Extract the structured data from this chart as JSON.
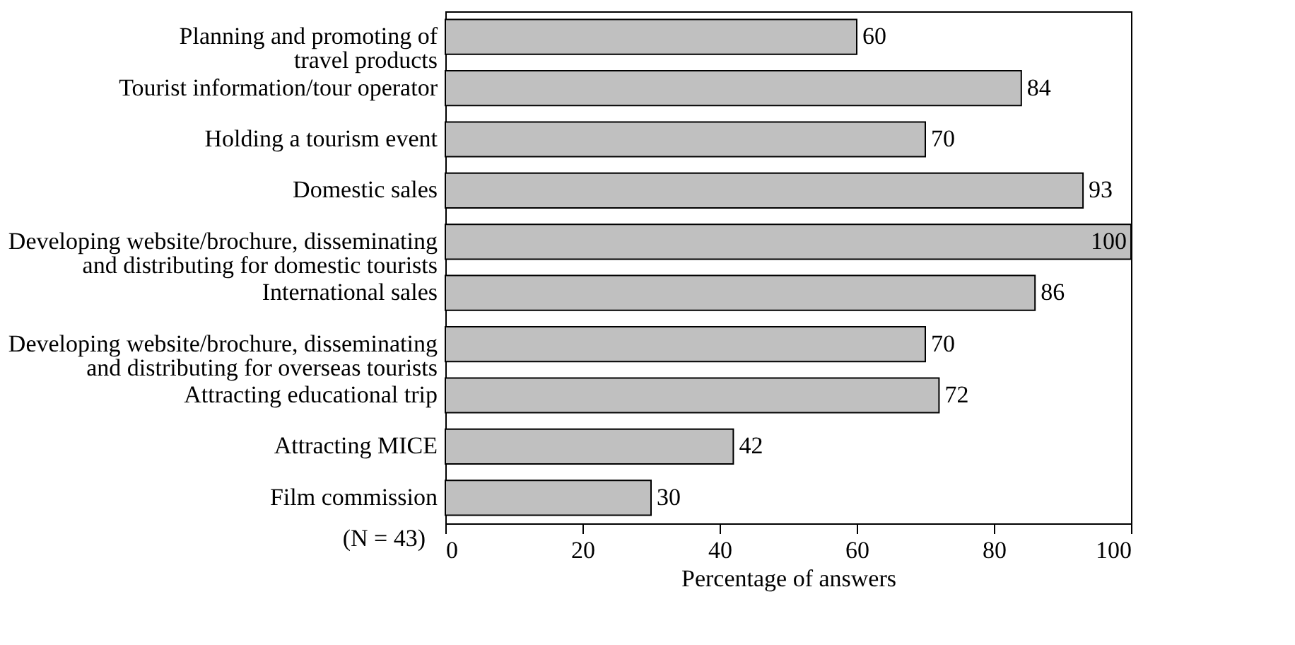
{
  "chart_data": {
    "type": "bar",
    "orientation": "horizontal",
    "categories": [
      "Planning and promoting of\ntravel products",
      "Tourist information/tour operator",
      "Holding a tourism event",
      "Domestic sales",
      "Developing website/brochure, disseminating\nand distributing for domestic tourists",
      "International sales",
      "Developing website/brochure, disseminating\nand distributing for overseas tourists",
      "Attracting educational trip",
      "Attracting MICE",
      "Film commission"
    ],
    "values": [
      60,
      84,
      70,
      93,
      100,
      86,
      70,
      72,
      42,
      30
    ],
    "color": "#c0c0c0",
    "xlim": [
      0,
      100
    ],
    "xticks": [
      0,
      20,
      40,
      60,
      80,
      100
    ],
    "xlabel": "Percentage of answers",
    "annotations": [
      "(N = 43)"
    ],
    "data_labels": true,
    "grid": false
  }
}
